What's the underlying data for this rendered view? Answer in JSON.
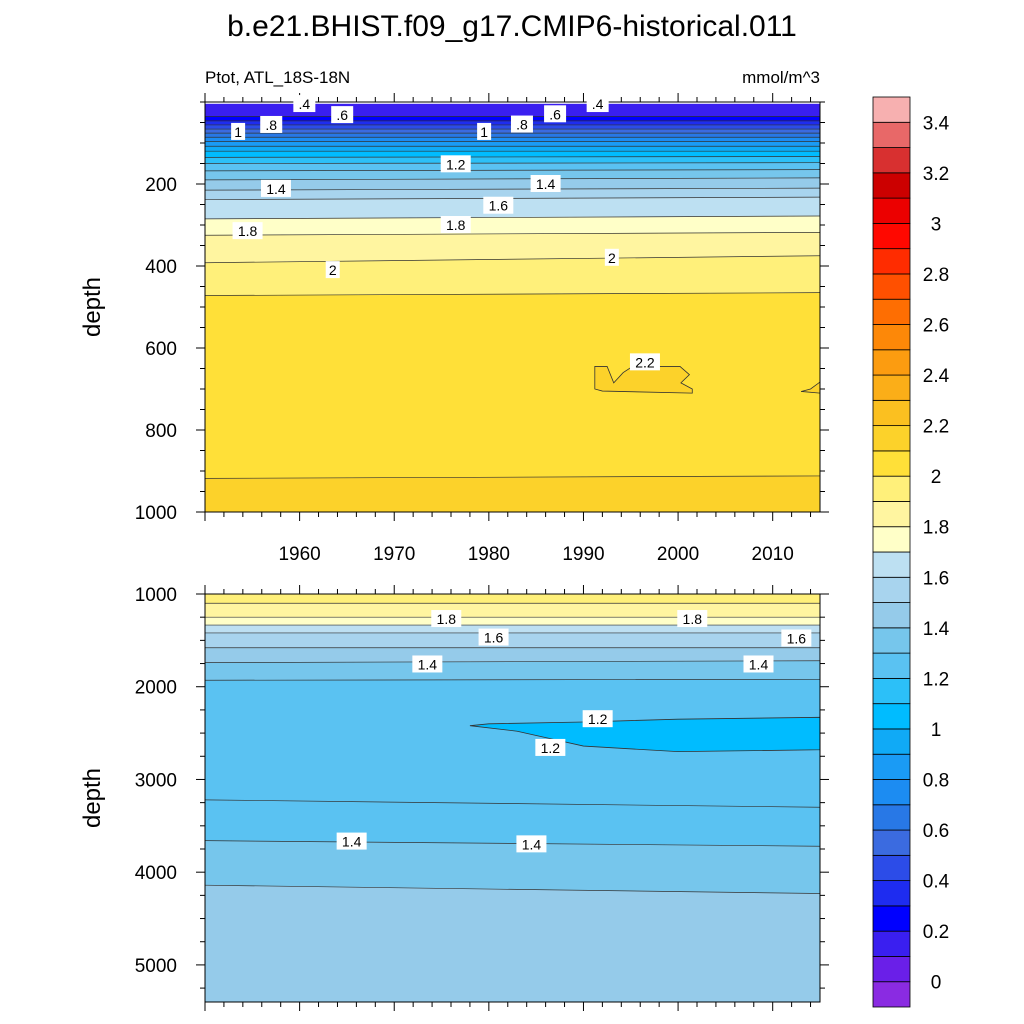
{
  "title": "b.e21.BHIST.f09_g17.CMIP6-historical.011",
  "subtitle_left": "Ptot, ATL_18S-18N",
  "subtitle_right": "mmol/m^3",
  "chart_data": {
    "type": "heatmap",
    "units": "mmol/m^3",
    "x_range": [
      1950,
      2015
    ],
    "x_ticks": [
      1960,
      1970,
      1980,
      1990,
      2000,
      2010
    ],
    "panels": [
      {
        "ylabel": "depth",
        "y_range": [
          0,
          1000
        ],
        "y_reversed": true,
        "y_ticks": [
          200,
          400,
          600,
          800,
          1000
        ],
        "show_x_tick_labels": true,
        "data_top_depth": 5,
        "levels": [
          {
            "value": 0.3,
            "depth": [
              35,
              35
            ]
          },
          {
            "value": 0.4,
            "depth": [
              46,
              46
            ]
          },
          {
            "value": 0.5,
            "depth": [
              56,
              56
            ]
          },
          {
            "value": 0.6,
            "depth": [
              66,
              66
            ]
          },
          {
            "value": 0.7,
            "depth": [
              76,
              76
            ]
          },
          {
            "value": 0.8,
            "depth": [
              86,
              86
            ]
          },
          {
            "value": 0.9,
            "depth": [
              96,
              96
            ]
          },
          {
            "value": 1.0,
            "depth": [
              108,
              108
            ]
          },
          {
            "value": 1.1,
            "depth": [
              120,
              120
            ]
          },
          {
            "value": 1.2,
            "depth": [
              135,
              133
            ]
          },
          {
            "value": 1.3,
            "depth": [
              150,
              148
            ]
          },
          {
            "value": 1.4,
            "depth": [
              168,
              165
            ]
          },
          {
            "value": 1.5,
            "depth": [
              190,
              185
            ]
          },
          {
            "value": 1.6,
            "depth": [
              215,
              210
            ]
          },
          {
            "value": 1.7,
            "depth": [
              238,
              232
            ]
          },
          {
            "value": 1.8,
            "depth": [
              285,
              278
            ]
          },
          {
            "value": 1.9,
            "depth": [
              325,
              318
            ]
          },
          {
            "value": 2.0,
            "depth": [
              392,
              375
            ]
          },
          {
            "value": 2.1,
            "depth": [
              472,
              465
            ]
          },
          {
            "value": 2.2,
            "depth": [
              918,
              912
            ]
          }
        ],
        "labels": [
          {
            "text": ".4",
            "x": 1960.5,
            "depth": 5
          },
          {
            "text": ".6",
            "x": 1964.5,
            "depth": 32
          },
          {
            "text": ".8",
            "x": 1957,
            "depth": 56
          },
          {
            "text": "1",
            "x": 1953.5,
            "depth": 73
          },
          {
            "text": "1.2",
            "x": 1976.5,
            "depth": 152
          },
          {
            "text": "1.4",
            "x": 1957.5,
            "depth": 212
          },
          {
            "text": "1.6",
            "x": 1981,
            "depth": 253
          },
          {
            "text": "1.8",
            "x": 1954.5,
            "depth": 315
          },
          {
            "text": "1.8",
            "x": 1976.5,
            "depth": 300
          },
          {
            "text": "2",
            "x": 1963.5,
            "depth": 410
          },
          {
            "text": "2",
            "x": 1993,
            "depth": 380
          },
          {
            "text": ".4",
            "x": 1991.5,
            "depth": 5
          },
          {
            "text": ".6",
            "x": 1987,
            "depth": 30
          },
          {
            "text": ".8",
            "x": 1983.5,
            "depth": 55
          },
          {
            "text": "1",
            "x": 1979.5,
            "depth": 73
          },
          {
            "text": "1.4",
            "x": 1986,
            "depth": 200
          },
          {
            "text": "2.2",
            "x": 1996.5,
            "depth": 635
          }
        ],
        "anomaly": {
          "value": 2.2,
          "outline": [
            [
              1991.2,
              645
            ],
            [
              1992.5,
              645
            ],
            [
              1993.2,
              685
            ],
            [
              1994.2,
              660
            ],
            [
              1995.2,
              645
            ],
            [
              2000.2,
              645
            ],
            [
              2001.2,
              665
            ],
            [
              2000.3,
              685
            ],
            [
              2001.5,
              700
            ],
            [
              2001.5,
              710
            ],
            [
              1992,
              705
            ],
            [
              1991.2,
              700
            ]
          ]
        },
        "edge_blip": {
          "value": 2.2,
          "outline": [
            [
              2015,
              683
            ],
            [
              2014,
              700
            ],
            [
              2013,
              706
            ],
            [
              2015,
              710
            ]
          ]
        }
      },
      {
        "ylabel": "depth",
        "y_range": [
          1000,
          5400
        ],
        "y_reversed": true,
        "y_ticks": [
          1000,
          2000,
          3000,
          4000,
          5000
        ],
        "show_x_tick_labels": false,
        "data_top_depth": 1000,
        "levels": [
          {
            "value": 2.0,
            "depth": [
              1100,
              1100
            ]
          },
          {
            "value": 1.9,
            "depth": [
              1250,
              1250
            ]
          },
          {
            "value": 1.8,
            "depth": [
              1335,
              1335
            ]
          },
          {
            "value": 1.7,
            "depth": [
              1420,
              1420
            ]
          },
          {
            "value": 1.6,
            "depth": [
              1580,
              1580
            ]
          },
          {
            "value": 1.5,
            "depth": [
              1740,
              1720
            ]
          },
          {
            "value": 1.4,
            "depth": [
              1930,
              1920
            ]
          },
          {
            "value": 1.3,
            "depth": [
              3220,
              3300
            ]
          },
          {
            "value": 1.4,
            "depth": [
              3660,
              3720
            ]
          },
          {
            "value": 1.5,
            "depth": [
              4140,
              4230
            ]
          }
        ],
        "labels": [
          {
            "text": "1.8",
            "x": 1975.5,
            "depth": 1270
          },
          {
            "text": "1.8",
            "x": 2001.5,
            "depth": 1270
          },
          {
            "text": "1.6",
            "x": 1980.5,
            "depth": 1470
          },
          {
            "text": "1.6",
            "x": 2012.5,
            "depth": 1480
          },
          {
            "text": "1.4",
            "x": 1973.5,
            "depth": 1760
          },
          {
            "text": "1.4",
            "x": 2008.5,
            "depth": 1760
          },
          {
            "text": "1.2",
            "x": 1991.5,
            "depth": 2350
          },
          {
            "text": "1.2",
            "x": 1986.5,
            "depth": 2660
          },
          {
            "text": "1.4",
            "x": 1965.5,
            "depth": 3670
          },
          {
            "text": "1.4",
            "x": 1984.5,
            "depth": 3700
          }
        ],
        "anomaly": {
          "value": 1.1,
          "outline": [
            [
              1978,
              2420
            ],
            [
              1980,
              2400
            ],
            [
              1990,
              2380
            ],
            [
              2000,
              2350
            ],
            [
              2015,
              2330
            ],
            [
              2015,
              2680
            ],
            [
              2000,
              2700
            ],
            [
              1990,
              2640
            ],
            [
              1983,
              2480
            ]
          ]
        }
      }
    ],
    "colorbar": {
      "levels": [
        0,
        0.1,
        0.2,
        0.3,
        0.4,
        0.5,
        0.6,
        0.7,
        0.8,
        0.9,
        1.0,
        1.1,
        1.2,
        1.3,
        1.4,
        1.5,
        1.6,
        1.7,
        1.8,
        1.9,
        2.0,
        2.1,
        2.2,
        2.3,
        2.4,
        2.5,
        2.6,
        2.7,
        2.8,
        2.9,
        3.0,
        3.1,
        3.2,
        3.3,
        3.4,
        3.5
      ],
      "tick_labels": [
        "0",
        "0.2",
        "0.4",
        "0.6",
        "0.8",
        "1",
        "1.2",
        "1.4",
        "1.6",
        "1.8",
        "2",
        "2.2",
        "2.4",
        "2.6",
        "2.8",
        "3",
        "3.2",
        "3.4"
      ],
      "colors": [
        "#8a2be2",
        "#6a1fe8",
        "#3a1ff0",
        "#0000ff",
        "#1e2cf0",
        "#2c4ce8",
        "#3b6be0",
        "#2878e6",
        "#1c8cf2",
        "#1a9bf5",
        "#10aaf6",
        "#00bcff",
        "#2cc0f8",
        "#5ac2f2",
        "#76c6ec",
        "#95cbea",
        "#a8d4ee",
        "#bde0f2",
        "#ffffc8",
        "#fff5a0",
        "#fff07a",
        "#ffe038",
        "#fcd22a",
        "#fbc020",
        "#fbae18",
        "#fc9c10",
        "#fd8808",
        "#fe6e02",
        "#ff5000",
        "#ff2c00",
        "#ff0800",
        "#ec0000",
        "#cc0000",
        "#d83030",
        "#e86868",
        "#f7b0b0"
      ]
    }
  }
}
